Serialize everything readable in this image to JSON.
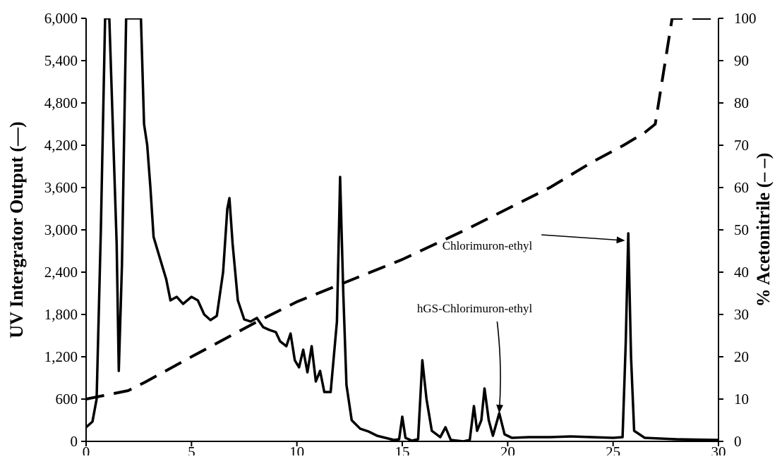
{
  "chart_data": {
    "type": "line",
    "title": "",
    "xlabel": "",
    "ylabel_left": "UV Intergrator Output (—)",
    "ylabel_right": "% Acetonitrile (– –)",
    "xlim": [
      0,
      30
    ],
    "ylim_left": [
      0,
      6000
    ],
    "ylim_right": [
      0,
      100
    ],
    "x_ticks": [
      0,
      5,
      10,
      15,
      20,
      25,
      30
    ],
    "x_tick_labels": [
      "0",
      "5",
      "10",
      "15",
      "20",
      "25",
      "30"
    ],
    "y_left_ticks": [
      0,
      600,
      1200,
      1800,
      2400,
      3000,
      3600,
      4200,
      4800,
      5400,
      6000
    ],
    "y_left_tick_labels": [
      "0",
      "600",
      "1,200",
      "1,800",
      "2,400",
      "3,000",
      "3,600",
      "4,200",
      "4,800",
      "5,400",
      "6,000"
    ],
    "y_right_ticks": [
      0,
      10,
      20,
      30,
      40,
      50,
      60,
      70,
      80,
      90,
      100
    ],
    "y_right_tick_labels": [
      "0",
      "10",
      "20",
      "30",
      "40",
      "50",
      "60",
      "70",
      "80",
      "90",
      "100"
    ],
    "grid": false,
    "series": [
      {
        "axis": "left",
        "style": "solid",
        "color": "#000000",
        "points": [
          [
            0.0,
            200
          ],
          [
            0.3,
            280
          ],
          [
            0.5,
            600
          ],
          [
            0.7,
            3000
          ],
          [
            0.9,
            6000
          ],
          [
            1.1,
            6000
          ],
          [
            1.45,
            2800
          ],
          [
            1.55,
            1000
          ],
          [
            1.7,
            2500
          ],
          [
            1.9,
            6000
          ],
          [
            2.2,
            6000
          ],
          [
            2.6,
            6000
          ],
          [
            2.75,
            4500
          ],
          [
            2.9,
            4200
          ],
          [
            3.05,
            3600
          ],
          [
            3.2,
            2900
          ],
          [
            3.5,
            2600
          ],
          [
            3.8,
            2300
          ],
          [
            4.0,
            2000
          ],
          [
            4.3,
            2050
          ],
          [
            4.6,
            1950
          ],
          [
            5.0,
            2050
          ],
          [
            5.3,
            2000
          ],
          [
            5.6,
            1800
          ],
          [
            5.9,
            1720
          ],
          [
            6.2,
            1780
          ],
          [
            6.5,
            2400
          ],
          [
            6.7,
            3300
          ],
          [
            6.8,
            3450
          ],
          [
            6.95,
            2800
          ],
          [
            7.2,
            2000
          ],
          [
            7.5,
            1730
          ],
          [
            7.8,
            1700
          ],
          [
            8.1,
            1750
          ],
          [
            8.4,
            1620
          ],
          [
            8.7,
            1580
          ],
          [
            9.0,
            1550
          ],
          [
            9.2,
            1420
          ],
          [
            9.5,
            1350
          ],
          [
            9.7,
            1530
          ],
          [
            9.9,
            1150
          ],
          [
            10.1,
            1050
          ],
          [
            10.3,
            1300
          ],
          [
            10.5,
            980
          ],
          [
            10.7,
            1350
          ],
          [
            10.9,
            850
          ],
          [
            11.1,
            1000
          ],
          [
            11.3,
            700
          ],
          [
            11.6,
            700
          ],
          [
            11.9,
            1700
          ],
          [
            12.05,
            3750
          ],
          [
            12.2,
            2100
          ],
          [
            12.35,
            800
          ],
          [
            12.6,
            300
          ],
          [
            13.0,
            180
          ],
          [
            13.4,
            140
          ],
          [
            13.8,
            80
          ],
          [
            14.2,
            50
          ],
          [
            14.6,
            20
          ],
          [
            14.85,
            30
          ],
          [
            15.0,
            350
          ],
          [
            15.15,
            50
          ],
          [
            15.45,
            10
          ],
          [
            15.75,
            30
          ],
          [
            15.95,
            1150
          ],
          [
            16.15,
            600
          ],
          [
            16.4,
            150
          ],
          [
            16.8,
            60
          ],
          [
            17.05,
            200
          ],
          [
            17.3,
            20
          ],
          [
            17.9,
            0
          ],
          [
            18.2,
            20
          ],
          [
            18.4,
            500
          ],
          [
            18.55,
            150
          ],
          [
            18.75,
            300
          ],
          [
            18.9,
            750
          ],
          [
            19.1,
            300
          ],
          [
            19.3,
            80
          ],
          [
            19.6,
            400
          ],
          [
            19.85,
            100
          ],
          [
            20.2,
            50
          ],
          [
            21.0,
            60
          ],
          [
            22.0,
            60
          ],
          [
            23.0,
            70
          ],
          [
            24.0,
            60
          ],
          [
            25.0,
            50
          ],
          [
            25.45,
            60
          ],
          [
            25.6,
            1400
          ],
          [
            25.72,
            2950
          ],
          [
            25.85,
            1200
          ],
          [
            26.0,
            150
          ],
          [
            26.5,
            50
          ],
          [
            28.0,
            30
          ],
          [
            30.0,
            20
          ]
        ]
      },
      {
        "axis": "right",
        "style": "dashed",
        "color": "#000000",
        "points": [
          [
            0.0,
            10
          ],
          [
            2.0,
            12
          ],
          [
            2.8,
            14
          ],
          [
            5.0,
            20
          ],
          [
            8.0,
            28
          ],
          [
            10.0,
            33
          ],
          [
            12.0,
            37
          ],
          [
            15.0,
            43
          ],
          [
            18.0,
            50
          ],
          [
            20.0,
            55
          ],
          [
            22.0,
            60
          ],
          [
            24.0,
            66
          ],
          [
            25.5,
            70
          ],
          [
            26.5,
            73
          ],
          [
            27.0,
            75
          ],
          [
            27.8,
            100
          ],
          [
            29.8,
            100
          ]
        ]
      }
    ],
    "annotations": [
      {
        "text": "Chlorimuron-ethyl",
        "x": 16.9,
        "y": 2720,
        "arrow_from": [
          21.6,
          2930
        ],
        "arrow_to": [
          25.5,
          2850
        ]
      },
      {
        "text": "hGS-Chlorimuron-ethyl",
        "x": 15.7,
        "y": 1830,
        "arrow_from": [
          19.5,
          1700
        ],
        "arrow_to": [
          19.6,
          420
        ]
      }
    ]
  }
}
